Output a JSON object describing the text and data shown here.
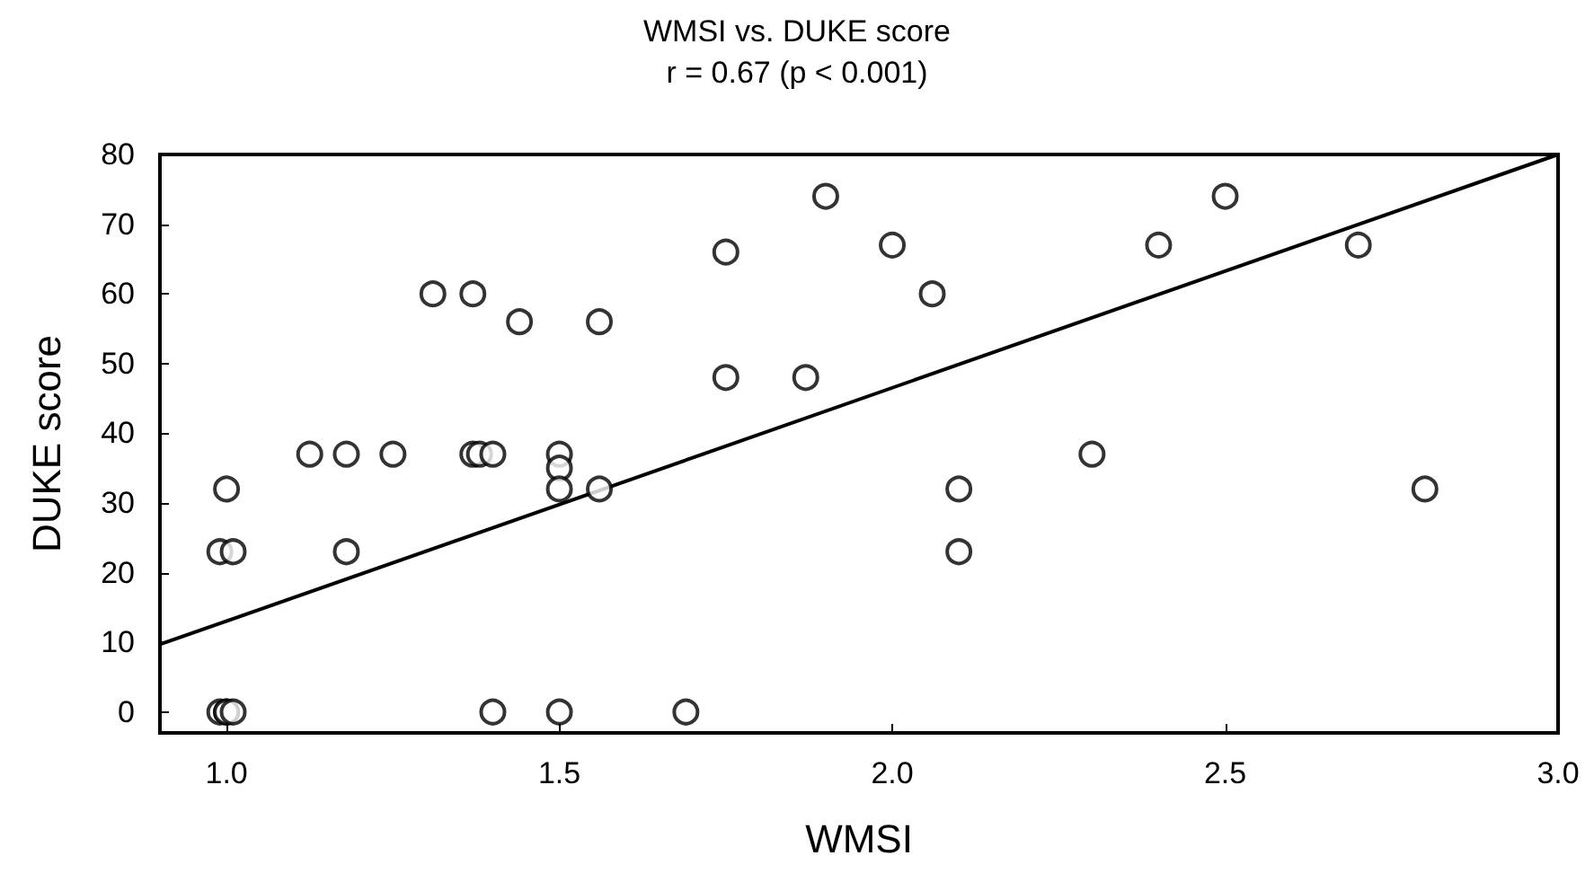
{
  "chart_data": {
    "type": "scatter",
    "title": "WMSI vs. DUKE score",
    "subtitle": "r = 0.67 (p < 0.001)",
    "xlabel": "WMSI",
    "ylabel": "DUKE score",
    "xlim": [
      0.9,
      3.0
    ],
    "xticks": [
      {
        "value": 1.0,
        "label": "1.0"
      },
      1.5,
      {
        "value": 2.0,
        "label": "2.0"
      },
      2.5,
      {
        "value": 3.0,
        "label": "3.0"
      }
    ],
    "ylim": [
      -3,
      80
    ],
    "yticks": [
      0,
      10,
      20,
      30,
      40,
      50,
      60,
      70,
      80
    ],
    "grid": false,
    "marker": "circle",
    "series": [
      {
        "color": "#000000",
        "x": [
          0.99,
          1.0,
          1.0,
          1.01,
          1.0,
          0.99,
          1.01,
          1.125,
          1.18,
          1.18,
          1.25,
          1.31,
          1.37,
          1.44,
          1.56,
          1.37,
          1.38,
          1.4,
          1.4,
          1.5,
          1.5,
          1.5,
          1.56,
          1.5,
          1.69,
          1.9,
          1.75,
          2.0,
          2.06,
          1.75,
          1.87,
          2.1,
          2.1,
          2.3,
          2.5,
          2.4,
          2.7,
          2.8
        ],
        "values": [
          0,
          0,
          0,
          0,
          32,
          23,
          23,
          37,
          37,
          23,
          37,
          60,
          60,
          56,
          56,
          37,
          37,
          37,
          0,
          37,
          35,
          32,
          32,
          0,
          0,
          74,
          66,
          67,
          60,
          48,
          48,
          32,
          23,
          37,
          74,
          67,
          67,
          32
        ]
      },
      {
        "type": "line",
        "color": "#000000",
        "marker": "none",
        "line_style": "solid",
        "x": [
          0.9,
          3.0
        ],
        "values": [
          9.7,
          80
        ]
      }
    ]
  }
}
